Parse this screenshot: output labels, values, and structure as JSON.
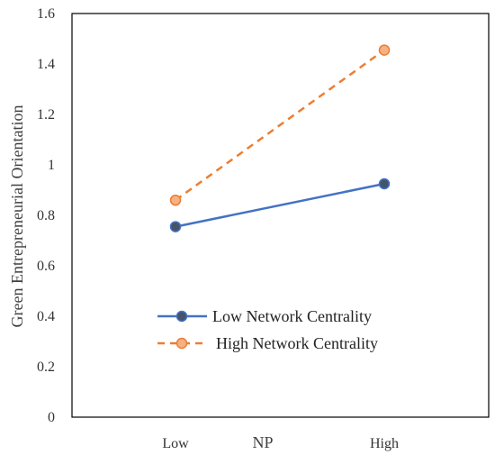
{
  "chart_data": {
    "type": "line",
    "title": "",
    "xlabel": "NP",
    "ylabel": "Green Entrepreneurial Orientation",
    "categories": [
      "Low",
      "High"
    ],
    "ylim": [
      0,
      1.6
    ],
    "yticks": [
      "0",
      "0.2",
      "0.4",
      "0.6",
      "0.8",
      "1",
      "1.2",
      "1.4",
      "1.6"
    ],
    "grid": false,
    "legend": "center",
    "series": [
      {
        "name": "Low Network Centrality",
        "values": [
          0.755,
          0.925
        ],
        "color": "#4472C4",
        "marker_color": "#44546A",
        "style": "solid"
      },
      {
        "name": "High Network Centrality",
        "values": [
          0.86,
          1.455
        ],
        "color": "#ED7D31",
        "marker_color": "#F4B183",
        "style": "dashed"
      }
    ]
  }
}
